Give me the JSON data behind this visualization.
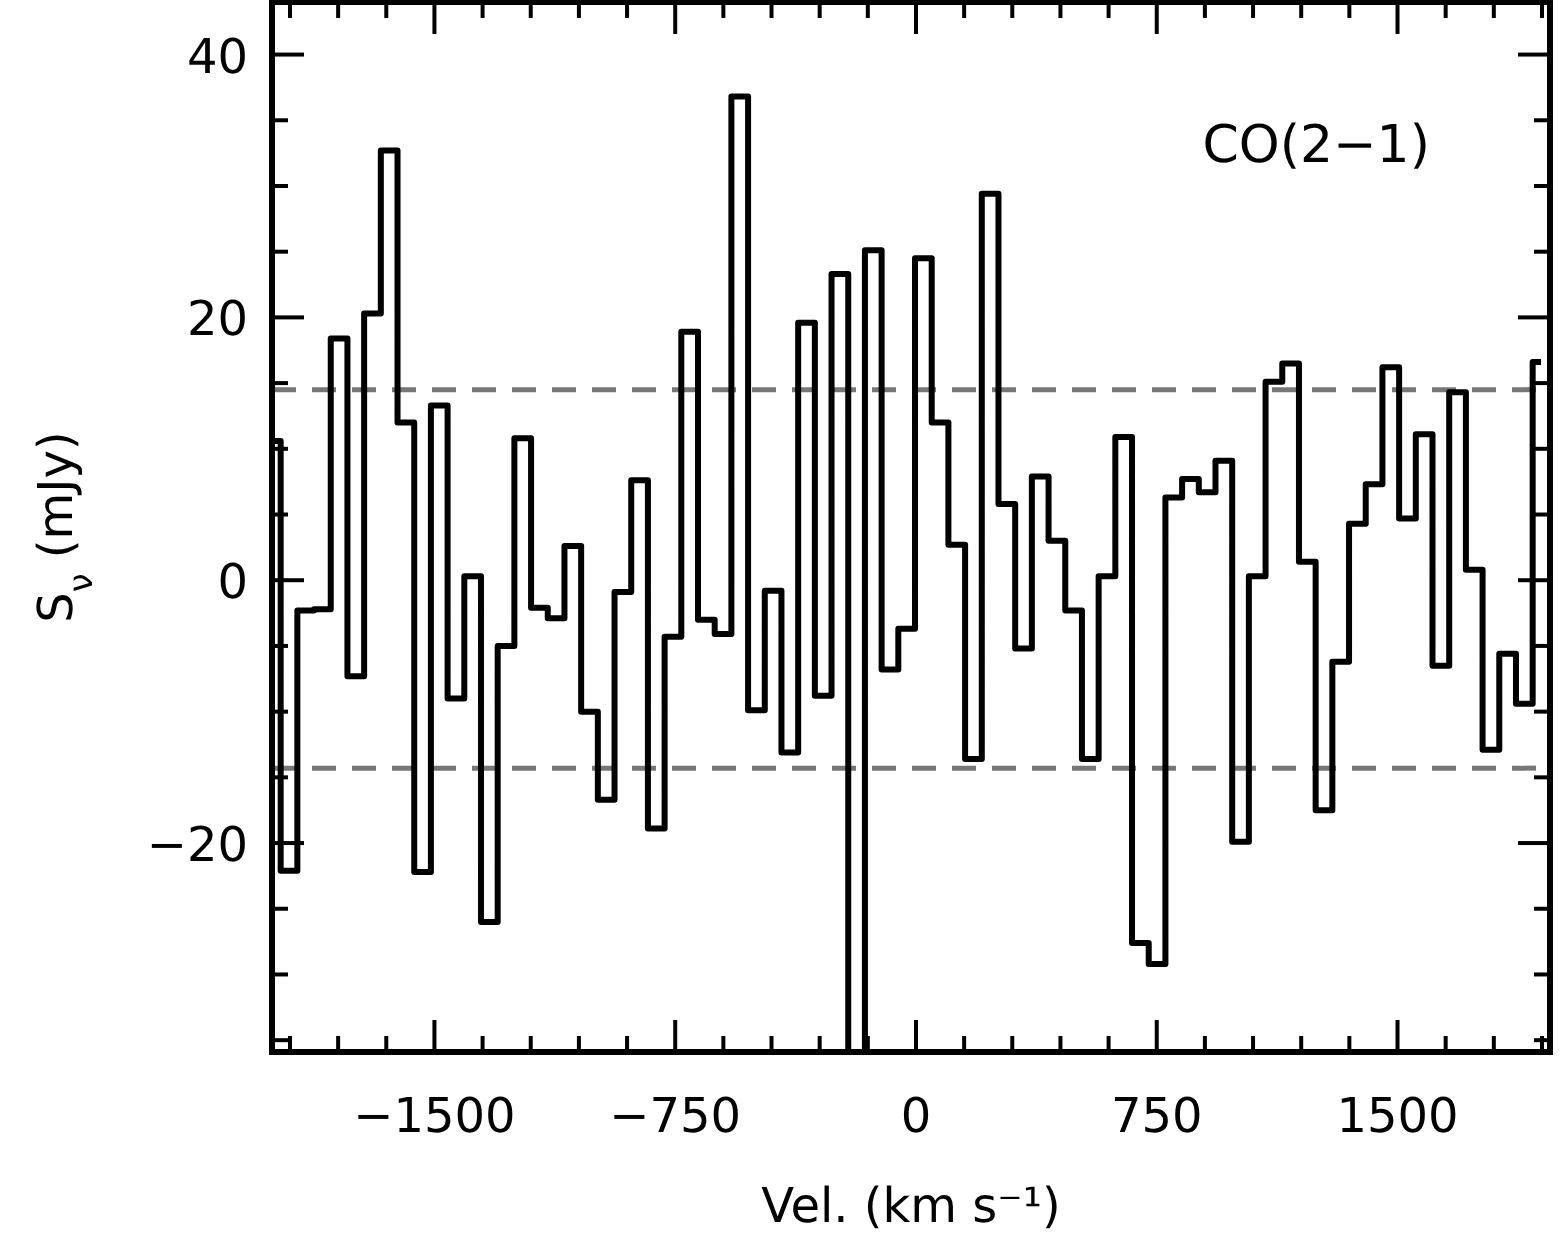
{
  "chart_data": {
    "type": "step",
    "xlabel": "Vel. (km s⁻¹)",
    "ylabel": "S$_{ν}$ (mJy)",
    "annotations": [
      "CO(2−1)"
    ],
    "x": [
      -2005,
      -1953,
      -1901,
      -1849,
      -1797,
      -1745,
      -1693,
      -1641,
      -1589,
      -1537,
      -1485,
      -1433,
      -1381,
      -1329,
      -1277,
      -1225,
      -1173,
      -1121,
      -1069,
      -1017,
      -965,
      -913,
      -861,
      -809,
      -757,
      -705,
      -653,
      -601,
      -549,
      -497,
      -445,
      -393,
      -341,
      -289,
      -237,
      -185,
      -133,
      -81,
      -29,
      23,
      75,
      127,
      179,
      231,
      283,
      335,
      387,
      439,
      491,
      543,
      595,
      647,
      699,
      751,
      803,
      855,
      907,
      959,
      1011,
      1063,
      1115,
      1167,
      1219,
      1271,
      1323,
      1375,
      1427,
      1479,
      1531,
      1583,
      1635,
      1687,
      1739,
      1791,
      1843,
      1895,
      1947
    ],
    "series": [
      {
        "color": "#000000",
        "values": [
          10.6,
          -22.1,
          -2.3,
          -2.2,
          18.4,
          -7.3,
          20.3,
          32.7,
          12.0,
          -22.2,
          13.3,
          -9.0,
          0.3,
          -26.0,
          -5.0,
          10.8,
          -2.1,
          -2.9,
          2.6,
          -10.0,
          -16.7,
          -0.9,
          7.6,
          -18.9,
          -4.3,
          18.9,
          -3.0,
          -4.1,
          36.8,
          -9.9,
          -0.8,
          -13.1,
          19.6,
          -8.8,
          23.3,
          -35.9,
          25.1,
          -6.8,
          -3.7,
          24.5,
          12.0,
          2.7,
          -13.6,
          29.4,
          5.8,
          -5.2,
          7.9,
          3.0,
          -2.3,
          -13.6,
          0.3,
          10.9,
          -27.6,
          -29.2,
          6.3,
          7.7,
          6.7,
          9.1,
          -19.9,
          0.3,
          15.1,
          16.5,
          1.4,
          -17.5,
          -6.2,
          4.3,
          7.3,
          16.2,
          4.7,
          11.1,
          -6.5,
          14.3,
          0.8,
          -12.9,
          -5.6,
          -9.4,
          16.6
        ]
      }
    ],
    "xlim": [
      -2006,
      1975
    ],
    "xticks": [
      {
        "value": -1950,
        "label": null
      },
      {
        "value": -1800,
        "label": null
      },
      {
        "value": -1650,
        "label": null
      },
      -1500,
      {
        "value": -1350,
        "label": null
      },
      {
        "value": -1200,
        "label": null
      },
      {
        "value": -1050,
        "label": null
      },
      {
        "value": -900,
        "label": null
      },
      -750,
      {
        "value": -600,
        "label": null
      },
      {
        "value": -450,
        "label": null
      },
      {
        "value": -300,
        "label": null
      },
      {
        "value": -150,
        "label": null
      },
      0,
      {
        "value": 150,
        "label": null
      },
      {
        "value": 300,
        "label": null
      },
      {
        "value": 450,
        "label": null
      },
      {
        "value": 600,
        "label": null
      },
      750,
      {
        "value": 900,
        "label": null
      },
      {
        "value": 1050,
        "label": null
      },
      {
        "value": 1200,
        "label": null
      },
      {
        "value": 1350,
        "label": null
      },
      1500,
      {
        "value": 1650,
        "label": null
      },
      {
        "value": 1800,
        "label": null
      },
      {
        "value": 1950,
        "label": null
      }
    ],
    "ylim": [
      -35.9,
      44
    ],
    "yticks": [
      {
        "value": -35,
        "label": null
      },
      {
        "value": -30,
        "label": null
      },
      {
        "value": -25,
        "label": null
      },
      -20,
      {
        "value": -15,
        "label": null
      },
      {
        "value": -10,
        "label": null
      },
      {
        "value": -5,
        "label": null
      },
      0,
      {
        "value": 5,
        "label": null
      },
      {
        "value": 10,
        "label": null
      },
      {
        "value": 15,
        "label": null
      },
      20,
      {
        "value": 25,
        "label": null
      },
      {
        "value": 30,
        "label": null
      },
      {
        "value": 35,
        "label": null
      },
      40
    ],
    "ref_lines": [
      {
        "axis": "y",
        "value": 14.5,
        "color": "#777777",
        "line_style": "dashed"
      },
      {
        "axis": "y",
        "value": -14.3,
        "color": "#777777",
        "line_style": "dashed"
      }
    ],
    "grid": false
  }
}
